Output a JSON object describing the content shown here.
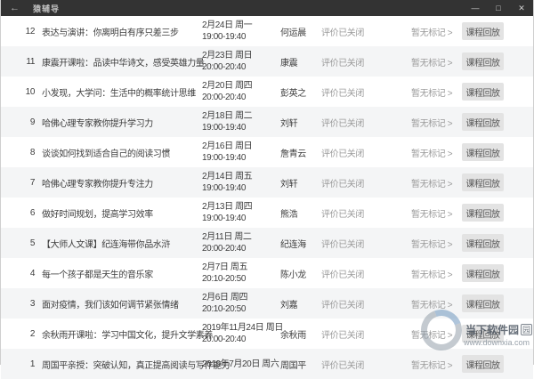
{
  "window": {
    "title": "猿辅导",
    "back_icon": "←",
    "controls": {
      "minimize": "—",
      "maximize": "□",
      "close": "✕"
    }
  },
  "table": {
    "labels": {
      "eval": "评价已关闭",
      "mark": "暂无标记 >",
      "replay": "课程回放"
    },
    "rows": [
      {
        "num": 12,
        "title": "表达与演讲：你离明白有序只差三步",
        "date": "2月24日 周一",
        "time": "19:00-19:40",
        "teacher": "何运晨"
      },
      {
        "num": 11,
        "title": "康震开课啦：品读中华诗文，感受英雄力量",
        "date": "2月23日 周日",
        "time": "20:00-20:40",
        "teacher": "康震"
      },
      {
        "num": 10,
        "title": "小发现，大学问：生活中的概率统计思维",
        "date": "2月20日 周四",
        "time": "20:00-20:40",
        "teacher": "彭英之"
      },
      {
        "num": 9,
        "title": "哈佛心理专家教你提升学习力",
        "date": "2月18日 周二",
        "time": "19:00-19:40",
        "teacher": "刘轩"
      },
      {
        "num": 8,
        "title": "谈谈如何找到适合自己的阅读习惯",
        "date": "2月16日 周日",
        "time": "19:00-19:40",
        "teacher": "詹青云"
      },
      {
        "num": 7,
        "title": "哈佛心理专家教你提升专注力",
        "date": "2月14日 周五",
        "time": "19:00-19:40",
        "teacher": "刘轩"
      },
      {
        "num": 6,
        "title": "做好时间规划，提高学习效率",
        "date": "2月13日 周四",
        "time": "19:00-19:40",
        "teacher": "熊浩"
      },
      {
        "num": 5,
        "title": "【大师人文课】纪连海带你品水浒",
        "date": "2月11日 周二",
        "time": "20:00-20:40",
        "teacher": "纪连海"
      },
      {
        "num": 4,
        "title": "每一个孩子都是天生的音乐家",
        "date": "2月7日 周五",
        "time": "20:10-20:50",
        "teacher": "陈小龙"
      },
      {
        "num": 3,
        "title": "面对疫情，我们该如何调节紧张情绪",
        "date": "2月6日 周四",
        "time": "20:10-20:50",
        "teacher": "刘嘉"
      },
      {
        "num": 2,
        "title": "余秋雨开课啦：学习中国文化，提升文学素养",
        "date": "2019年11月24日 周日",
        "time": "20:00-20:40",
        "teacher": "余秋雨"
      },
      {
        "num": 1,
        "title": "周国平亲授：突破认知，真正提高阅读与写作能力",
        "date": "2019年7月20日 周六",
        "time": "",
        "teacher": "周国平"
      }
    ]
  },
  "watermark": {
    "site_name": "当下软件园",
    "site_badge": "园",
    "url": "www.downxia.com"
  },
  "colors": {
    "titlebar": "#333333",
    "row_alt": "#f4f5f6",
    "text_primary": "#3d3d3d",
    "text_muted": "#9b9b9b",
    "button_bg": "#e3e3e3"
  }
}
